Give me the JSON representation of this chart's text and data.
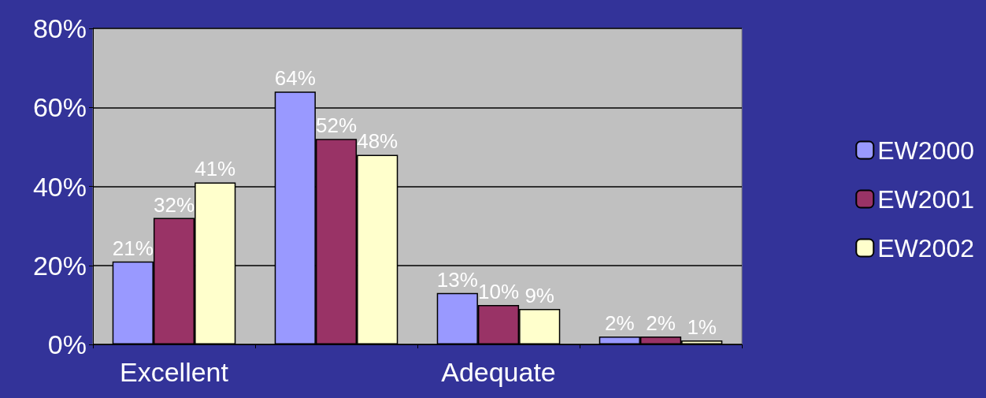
{
  "chart_data": {
    "type": "bar",
    "categories": [
      "Excellent",
      null,
      "Adequate",
      null
    ],
    "series": [
      {
        "name": "EW2000",
        "color": "#9999ff",
        "values": [
          21,
          64,
          13,
          2
        ],
        "value_labels": [
          "21%",
          "64%",
          "13%",
          "2%"
        ]
      },
      {
        "name": "EW2001",
        "color": "#993366",
        "values": [
          32,
          52,
          10,
          2
        ],
        "value_labels": [
          "32%",
          "52%",
          "10%",
          "2%"
        ]
      },
      {
        "name": "EW2002",
        "color": "#ffffcc",
        "values": [
          41,
          48,
          9,
          1
        ],
        "value_labels": [
          "41%",
          "48%",
          "9%",
          "1%"
        ]
      }
    ],
    "ylim": [
      0,
      80
    ],
    "yticks": [
      {
        "value": 0,
        "label": "0%"
      },
      {
        "value": 20,
        "label": "20%"
      },
      {
        "value": 40,
        "label": "40%"
      },
      {
        "value": 60,
        "label": "60%"
      },
      {
        "value": 80,
        "label": "80%"
      }
    ],
    "grid": "y",
    "legend": "right"
  }
}
